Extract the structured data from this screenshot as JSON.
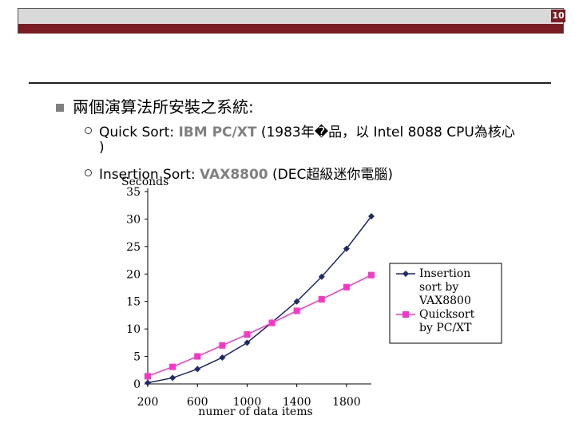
{
  "slide": {
    "page_number": "10",
    "main_bullet": "兩個演算法所安裝之系統:",
    "sub_bullets": [
      {
        "prefix": "Quick Sort: ",
        "highlight": "IBM PC/XT",
        "suffix": " (1983年�品，以 Intel 8088 CPU為核心",
        "continuation": ")"
      },
      {
        "prefix": "Insertion Sort: ",
        "highlight": "VAX8800",
        "suffix": " (DEC超級迷你電腦)"
      }
    ],
    "colors": {
      "header_dark": "#7a1c22",
      "header_light": "#d9d9d9",
      "highlight": "#808080",
      "insertion": "#1f2a6b",
      "quicksort": "#ff33cc"
    }
  },
  "chart_data": {
    "type": "line",
    "ylabel": "Seconds",
    "xlabel": "numer of data items",
    "xlim": [
      200,
      2000
    ],
    "ylim": [
      0,
      35
    ],
    "xticks": [
      "200",
      "600",
      "1000",
      "1400",
      "1800"
    ],
    "xtick_values": [
      200,
      600,
      1000,
      1400,
      1800
    ],
    "yticks": [
      "0",
      "5",
      "10",
      "15",
      "20",
      "25",
      "30",
      "35"
    ],
    "ytick_values": [
      0,
      5,
      10,
      15,
      20,
      25,
      30,
      35
    ],
    "x": [
      200,
      400,
      600,
      800,
      1000,
      1200,
      1400,
      1600,
      1800,
      2000
    ],
    "series": [
      {
        "name": "Insertion sort by VAX8800",
        "legend_lines": [
          "Insertion",
          "sort by",
          "VAX8800"
        ],
        "marker": "diamond",
        "values": [
          0.2,
          1.1,
          2.7,
          4.8,
          7.5,
          11.2,
          15.0,
          19.5,
          24.6,
          30.5
        ]
      },
      {
        "name": "Quicksort by PC/XT",
        "legend_lines": [
          "Quicksort",
          "by PC/XT"
        ],
        "marker": "square",
        "values": [
          1.4,
          3.1,
          5.0,
          7.0,
          9.0,
          11.1,
          13.3,
          15.4,
          17.6,
          19.8
        ]
      }
    ],
    "legend_position": "right"
  }
}
